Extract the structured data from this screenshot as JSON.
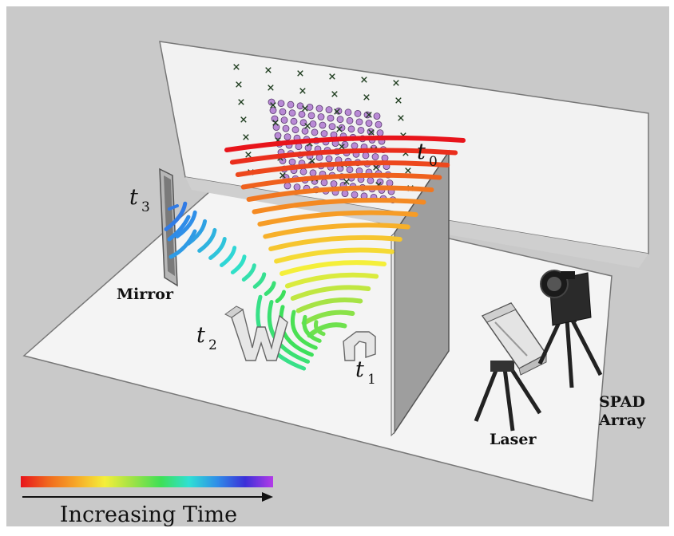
{
  "labels": {
    "mirror": "Mirror",
    "laser": "Laser",
    "spad_line1": "SPAD",
    "spad_line2": "Array",
    "t0": "t",
    "t0_sub": "0",
    "t1": "t",
    "t1_sub": "1",
    "t2": "t",
    "t2_sub": "2",
    "t3": "t",
    "t3_sub": "3"
  },
  "colorbar": {
    "caption": "Increasing Time",
    "stops": [
      "#e8141b",
      "#f06a1e",
      "#f7a928",
      "#f4ef3a",
      "#9de246",
      "#3ee056",
      "#2fe0d4",
      "#2f8ee8",
      "#3b2fd8",
      "#b43be8"
    ]
  },
  "colors": {
    "background": "#c9c9c9",
    "floor": "#f4f4f4",
    "wall": "#f2f2f2",
    "wall_edge": "#666666",
    "scan_point": "#b98ad6",
    "virtual_point": "#1f3d1f"
  }
}
